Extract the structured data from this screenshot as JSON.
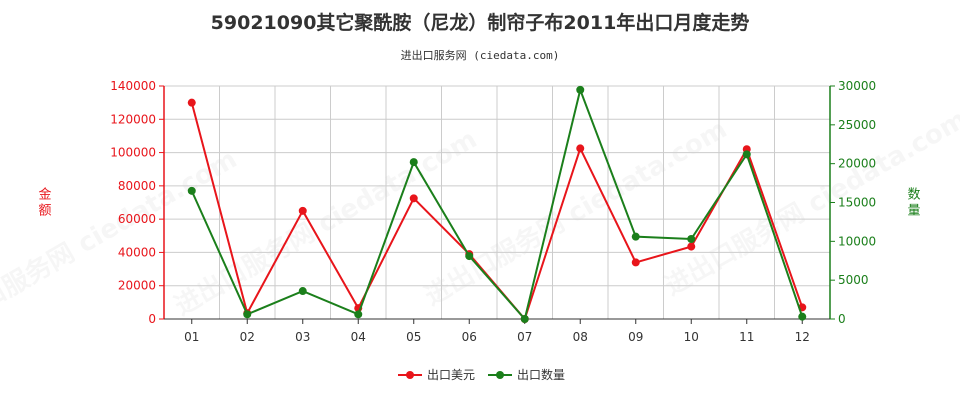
{
  "chart_data": {
    "type": "line",
    "title": "59021090其它聚酰胺（尼龙）制帘子布2011年出口月度走势",
    "subtitle": "进出口服务网 (ciedata.com)",
    "watermark": "进出口服务网 ciedata.com",
    "categories": [
      "01",
      "02",
      "03",
      "04",
      "05",
      "06",
      "07",
      "08",
      "09",
      "10",
      "11",
      "12"
    ],
    "y_left": {
      "label": "金额",
      "ylim": [
        0,
        140000
      ],
      "ticks": [
        0,
        20000,
        40000,
        60000,
        80000,
        100000,
        120000,
        140000
      ],
      "tick_labels": [
        "0",
        "20000",
        "40000",
        "60000",
        "80000",
        "100000",
        "120000",
        "140000"
      ]
    },
    "y_right": {
      "label": "数量",
      "ylim": [
        0,
        30000
      ],
      "ticks": [
        0,
        5000,
        10000,
        15000,
        20000,
        25000,
        30000
      ],
      "tick_labels": [
        "0",
        "5000",
        "10000",
        "15000",
        "20000",
        "25000",
        "30000"
      ]
    },
    "grid": true,
    "legend_position": "bottom-center",
    "series": [
      {
        "name": "出口美元",
        "axis": "left",
        "color": "#e8151b",
        "values": [
          130000,
          3500,
          65000,
          6500,
          72500,
          39000,
          0,
          102500,
          34000,
          43500,
          102000,
          7000
        ]
      },
      {
        "name": "出口数量",
        "axis": "right",
        "color": "#1b7f1b",
        "values": [
          16500,
          600,
          3600,
          600,
          20200,
          8100,
          0,
          29500,
          10600,
          10300,
          21200,
          300
        ]
      }
    ],
    "axis_colors": {
      "left": "#e8151b",
      "right": "#1b7f1b",
      "x": "#333333",
      "grid": "#cccccc"
    }
  }
}
